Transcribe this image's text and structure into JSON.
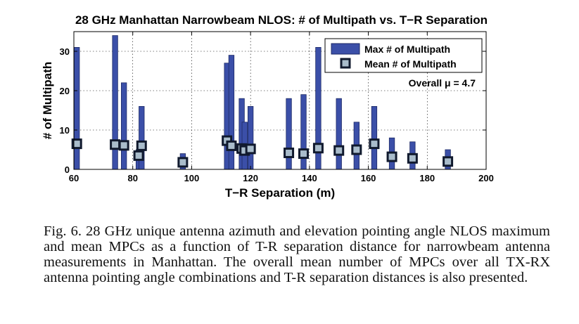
{
  "chart_data": {
    "type": "bar",
    "title": "28 GHz Manhattan Narrowbeam NLOS: # of Multipath vs. T−R Separation",
    "xlabel": "T−R Separation (m)",
    "ylabel": "# of Multipath",
    "xlim": [
      60,
      200
    ],
    "ylim": [
      0,
      35
    ],
    "xticks": [
      "60",
      "80",
      "100",
      "120",
      "140",
      "160",
      "180",
      "200"
    ],
    "yticks": [
      "0",
      "10",
      "20",
      "30"
    ],
    "grid": true,
    "legend_position": "top-right",
    "annotation": "Overall μ = 4.7",
    "colors": {
      "bar": "#3b4fa8",
      "marker_fill": "#a9bccb",
      "marker_edge": "#111a2e"
    },
    "series": [
      {
        "name": "Max # of Multipath",
        "kind": "bar",
        "points": [
          {
            "x": 61,
            "y": 31
          },
          {
            "x": 74,
            "y": 34
          },
          {
            "x": 77,
            "y": 22
          },
          {
            "x": 82,
            "y": 5
          },
          {
            "x": 83,
            "y": 16
          },
          {
            "x": 97,
            "y": 4
          },
          {
            "x": 112,
            "y": 27
          },
          {
            "x": 113.5,
            "y": 29
          },
          {
            "x": 117,
            "y": 18
          },
          {
            "x": 118,
            "y": 12
          },
          {
            "x": 120,
            "y": 16
          },
          {
            "x": 133,
            "y": 18
          },
          {
            "x": 138,
            "y": 19
          },
          {
            "x": 143,
            "y": 31
          },
          {
            "x": 150,
            "y": 18
          },
          {
            "x": 156,
            "y": 12
          },
          {
            "x": 162,
            "y": 16
          },
          {
            "x": 168,
            "y": 8
          },
          {
            "x": 175,
            "y": 7
          },
          {
            "x": 187,
            "y": 5
          }
        ]
      },
      {
        "name": "Mean # of Multipath",
        "kind": "marker",
        "points": [
          {
            "x": 61,
            "y": 6.5
          },
          {
            "x": 74,
            "y": 6.3
          },
          {
            "x": 77,
            "y": 6.1
          },
          {
            "x": 82,
            "y": 3.5
          },
          {
            "x": 83,
            "y": 6.0
          },
          {
            "x": 97,
            "y": 1.8
          },
          {
            "x": 112,
            "y": 7.3
          },
          {
            "x": 113.5,
            "y": 6.0
          },
          {
            "x": 117,
            "y": 5.3
          },
          {
            "x": 118,
            "y": 4.8
          },
          {
            "x": 120,
            "y": 5.2
          },
          {
            "x": 133,
            "y": 4.2
          },
          {
            "x": 138,
            "y": 4.0
          },
          {
            "x": 143,
            "y": 5.4
          },
          {
            "x": 150,
            "y": 4.8
          },
          {
            "x": 156,
            "y": 5.0
          },
          {
            "x": 162,
            "y": 6.5
          },
          {
            "x": 168,
            "y": 3.2
          },
          {
            "x": 175,
            "y": 2.8
          },
          {
            "x": 187,
            "y": 2.0
          }
        ]
      }
    ]
  },
  "caption": "Fig. 6.  28 GHz unique antenna azimuth and elevation pointing angle NLOS maximum and mean MPCs as a function of T-R separation distance for narrowbeam antenna measurements in Manhattan. The overall mean number of MPCs over all TX-RX antenna pointing angle combinations and T-R separation distances is also presented."
}
